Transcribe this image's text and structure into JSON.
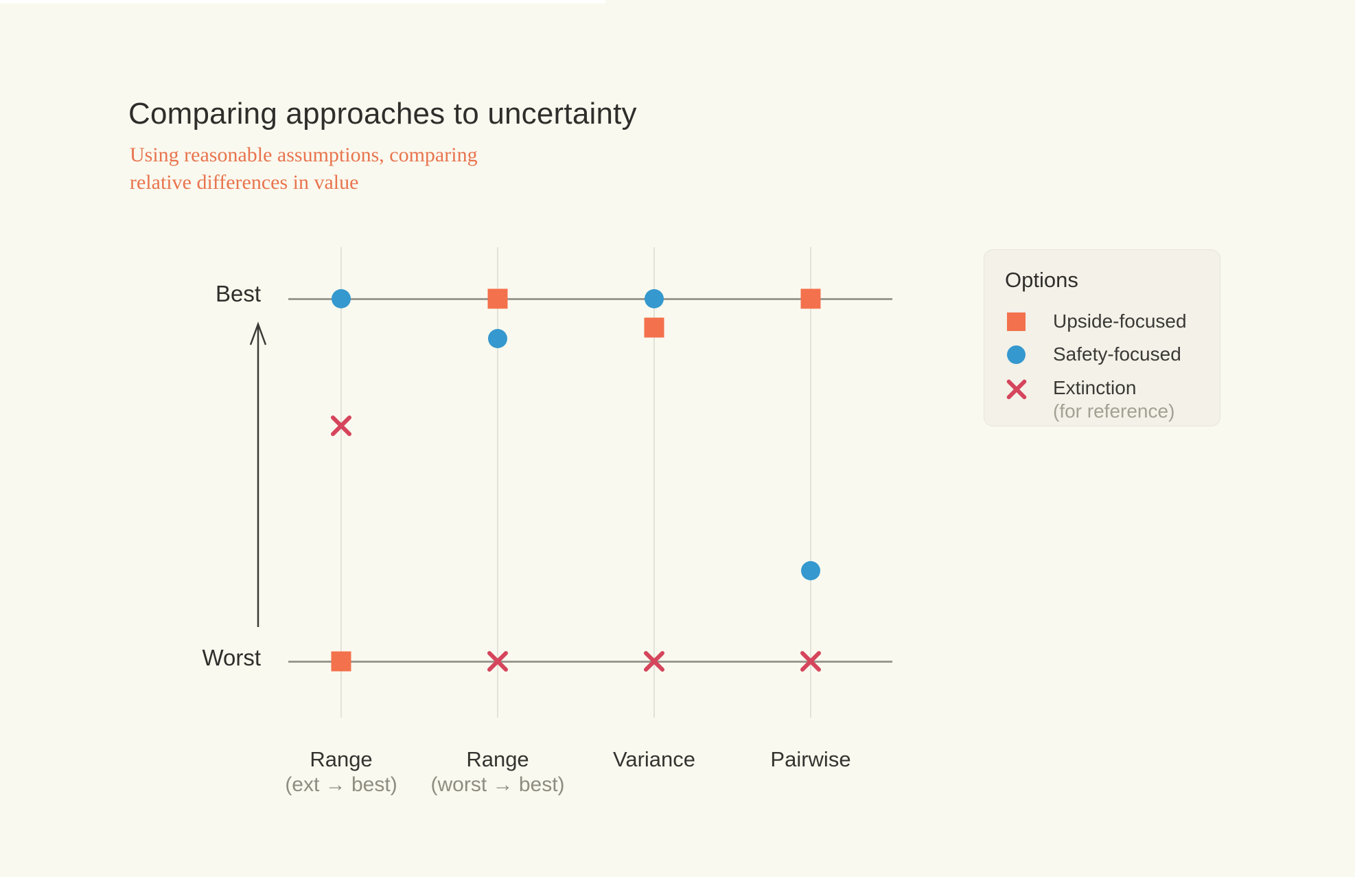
{
  "header": {
    "title": "Comparing approaches to uncertainty",
    "subtitle_line1": "Using reasonable assumptions, comparing",
    "subtitle_line2": "relative differences in value"
  },
  "colors": {
    "background": "#FAF9EF",
    "orange": "#F3714C",
    "blue": "#3598CE",
    "red": "#D5455C",
    "axis_line": "#9B988F",
    "gridline": "#E3E1D8",
    "dark_text": "#2F2E2B",
    "muted_text": "#8F8C81",
    "legend_background": "#F3F1E8"
  },
  "legend": {
    "title": "Options",
    "items": [
      {
        "marker": "square",
        "color": "#F3714C",
        "label": "Upside-focused",
        "sublabel": ""
      },
      {
        "marker": "circle",
        "color": "#3598CE",
        "label": "Safety-focused",
        "sublabel": ""
      },
      {
        "marker": "x",
        "color": "#D5455C",
        "label": "Extinction",
        "sublabel": "(for reference)"
      }
    ]
  },
  "chart_data": {
    "type": "scatter",
    "title": "Comparing approaches to uncertainty",
    "subtitle": "Using reasonable assumptions, comparing relative differences in value",
    "y_axis": {
      "top_label": "Best",
      "bottom_label": "Worst",
      "scale_note": "relative value from Worst (0) to Best (1)"
    },
    "ylim": [
      0,
      1
    ],
    "grid": "vertical gridline per category; horizontal reference lines at Best and Worst",
    "legend_position": "right",
    "categories": [
      {
        "label": "Range",
        "sublabel": "(ext → best)"
      },
      {
        "label": "Range",
        "sublabel": "(worst → best)"
      },
      {
        "label": "Variance",
        "sublabel": ""
      },
      {
        "label": "Pairwise",
        "sublabel": ""
      }
    ],
    "series": [
      {
        "name": "Upside-focused",
        "marker": "square",
        "color": "#F3714C",
        "values": [
          0,
          1,
          0.92,
          1
        ]
      },
      {
        "name": "Safety-focused",
        "marker": "circle",
        "color": "#3598CE",
        "values": [
          1,
          0.89,
          1,
          0.25
        ]
      },
      {
        "name": "Extinction (for reference)",
        "marker": "x",
        "color": "#D5455C",
        "values": [
          0.65,
          0,
          0,
          0
        ]
      }
    ]
  }
}
